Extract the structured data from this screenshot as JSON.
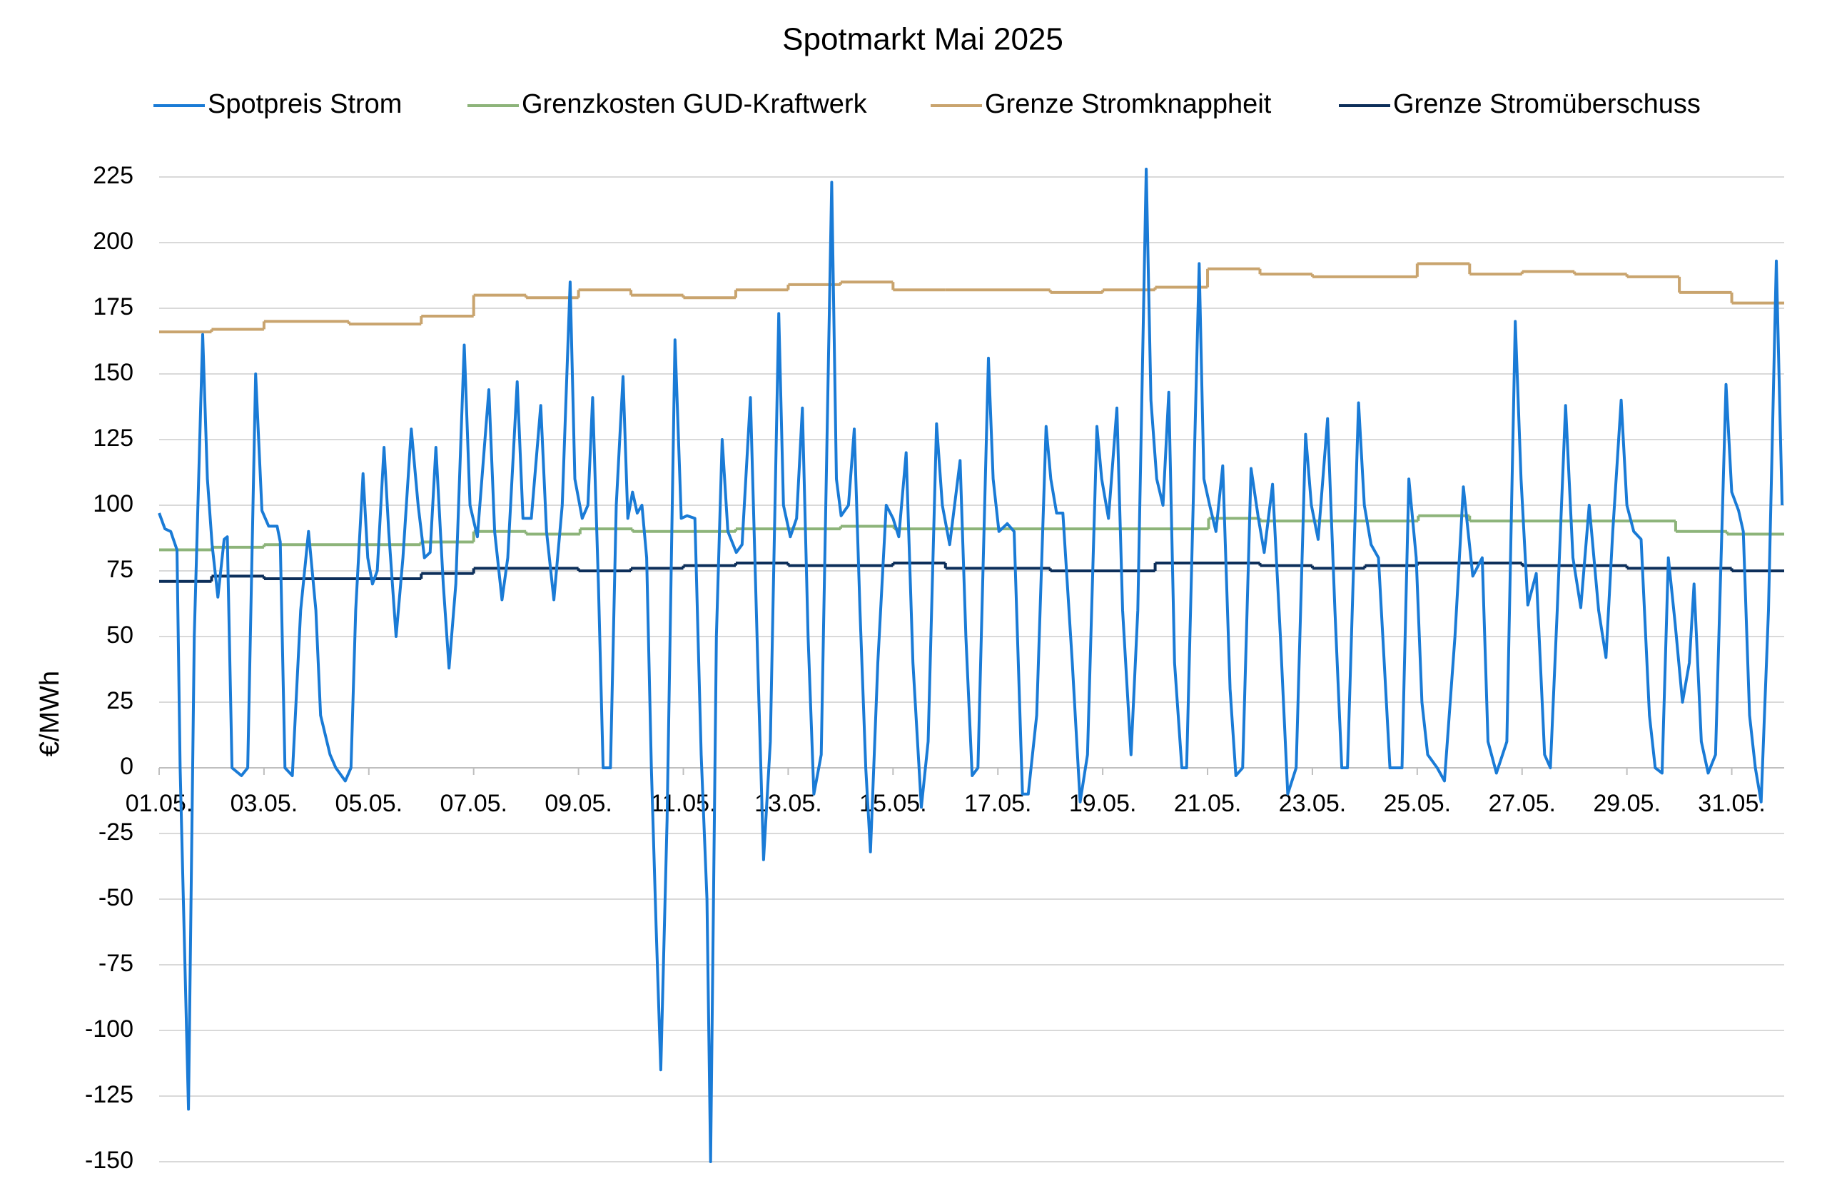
{
  "chart_data": {
    "type": "line",
    "title": "Spotmarkt Mai 2025",
    "y_label": "€/MWh",
    "xlim": [
      1,
      32
    ],
    "ylim": [
      -150,
      225
    ],
    "xticks": [
      {
        "value": 1,
        "label": "01.05."
      },
      {
        "value": 3,
        "label": "03.05."
      },
      {
        "value": 5,
        "label": "05.05."
      },
      {
        "value": 7,
        "label": "07.05."
      },
      {
        "value": 9,
        "label": "09.05."
      },
      {
        "value": 11,
        "label": "11.05."
      },
      {
        "value": 13,
        "label": "13.05."
      },
      {
        "value": 15,
        "label": "15.05."
      },
      {
        "value": 17,
        "label": "17.05."
      },
      {
        "value": 19,
        "label": "19.05."
      },
      {
        "value": 21,
        "label": "21.05."
      },
      {
        "value": 23,
        "label": "23.05."
      },
      {
        "value": 25,
        "label": "25.05."
      },
      {
        "value": 27,
        "label": "27.05."
      },
      {
        "value": 29,
        "label": "29.05."
      },
      {
        "value": 31,
        "label": "31.05."
      }
    ],
    "yticks": [
      225,
      200,
      175,
      150,
      125,
      100,
      75,
      50,
      25,
      0,
      -25,
      -50,
      -75,
      -100,
      -125,
      -150
    ],
    "grid": true,
    "series": [
      {
        "name": "Spotpreis Strom",
        "color": "#1a7bd6",
        "x": [
          1.0,
          1.11,
          1.22,
          1.34,
          1.4,
          1.56,
          1.67,
          1.83,
          1.92,
          2.01,
          2.12,
          2.24,
          2.3,
          2.39,
          2.57,
          2.69,
          2.84,
          2.96,
          3.09,
          3.25,
          3.31,
          3.4,
          3.54,
          3.7,
          3.85,
          3.99,
          4.08,
          4.26,
          4.37,
          4.55,
          4.66,
          4.75,
          4.89,
          4.98,
          5.07,
          5.16,
          5.29,
          5.38,
          5.52,
          5.65,
          5.81,
          5.94,
          6.06,
          6.17,
          6.28,
          6.42,
          6.53,
          6.66,
          6.82,
          6.93,
          7.07,
          7.29,
          7.4,
          7.54,
          7.65,
          7.83,
          7.94,
          8.1,
          8.28,
          8.39,
          8.53,
          8.69,
          8.84,
          8.93,
          9.07,
          9.18,
          9.27,
          9.38,
          9.47,
          9.61,
          9.72,
          9.85,
          9.94,
          10.03,
          10.12,
          10.21,
          10.3,
          10.39,
          10.48,
          10.57,
          10.69,
          10.84,
          10.96,
          11.07,
          11.22,
          11.34,
          11.45,
          11.52,
          11.63,
          11.74,
          11.85,
          12.01,
          12.12,
          12.28,
          12.42,
          12.53,
          12.66,
          12.82,
          12.91,
          13.04,
          13.16,
          13.27,
          13.38,
          13.49,
          13.63,
          13.83,
          13.92,
          14.01,
          14.15,
          14.26,
          14.37,
          14.48,
          14.57,
          14.71,
          14.87,
          15.0,
          15.11,
          15.25,
          15.38,
          15.54,
          15.67,
          15.83,
          15.94,
          16.08,
          16.28,
          16.39,
          16.51,
          16.62,
          16.82,
          16.91,
          17.02,
          17.18,
          17.31,
          17.47,
          17.58,
          17.74,
          17.92,
          18.01,
          18.12,
          18.24,
          18.42,
          18.57,
          18.71,
          18.89,
          18.98,
          19.11,
          19.27,
          19.38,
          19.54,
          19.67,
          19.83,
          19.92,
          20.03,
          20.15,
          20.26,
          20.37,
          20.51,
          20.6,
          20.84,
          20.93,
          21.04,
          21.16,
          21.29,
          21.43,
          21.54,
          21.67,
          21.83,
          21.97,
          22.08,
          22.24,
          22.39,
          22.53,
          22.69,
          22.87,
          22.98,
          23.11,
          23.29,
          23.43,
          23.56,
          23.67,
          23.88,
          23.99,
          24.12,
          24.26,
          24.37,
          24.48,
          24.71,
          24.84,
          24.98,
          25.09,
          25.2,
          25.38,
          25.52,
          25.72,
          25.88,
          26.06,
          26.24,
          26.35,
          26.51,
          26.71,
          26.87,
          26.98,
          27.11,
          27.27,
          27.43,
          27.54,
          27.67,
          27.83,
          27.97,
          28.12,
          28.28,
          28.46,
          28.6,
          28.73,
          28.89,
          29.0,
          29.13,
          29.27,
          29.43,
          29.54,
          29.67,
          29.79,
          29.92,
          30.06,
          30.19,
          30.28,
          30.42,
          30.55,
          30.69,
          30.89,
          31.0,
          31.13,
          31.22,
          31.34,
          31.45,
          31.56,
          31.7,
          31.85,
          31.96
        ],
        "values": [
          97,
          91,
          90,
          83,
          0,
          -130,
          50,
          165,
          110,
          85,
          65,
          87,
          88,
          0,
          -3,
          0,
          150,
          98,
          92,
          92,
          86,
          0,
          -3,
          60,
          90,
          60,
          20,
          5,
          0,
          -5,
          0,
          60,
          112,
          80,
          70,
          75,
          122,
          90,
          50,
          80,
          129,
          100,
          80,
          82,
          122,
          70,
          38,
          70,
          161,
          100,
          88,
          144,
          90,
          64,
          80,
          147,
          95,
          95,
          138,
          90,
          64,
          100,
          185,
          110,
          95,
          100,
          141,
          70,
          0,
          0,
          100,
          149,
          95,
          105,
          97,
          100,
          80,
          0,
          -60,
          -115,
          -20,
          163,
          95,
          96,
          95,
          5,
          -50,
          -150,
          50,
          125,
          90,
          82,
          85,
          141,
          40,
          -35,
          10,
          173,
          100,
          88,
          95,
          137,
          50,
          -10,
          5,
          223,
          110,
          96,
          100,
          129,
          60,
          0,
          -32,
          40,
          100,
          95,
          88,
          120,
          40,
          -15,
          10,
          131,
          100,
          85,
          117,
          50,
          -3,
          0,
          156,
          110,
          90,
          93,
          90,
          -10,
          -10,
          20,
          130,
          110,
          97,
          97,
          40,
          -13,
          5,
          130,
          110,
          95,
          137,
          60,
          5,
          60,
          228,
          140,
          110,
          100,
          143,
          40,
          0,
          0,
          192,
          110,
          100,
          90,
          115,
          30,
          -3,
          0,
          114,
          95,
          82,
          108,
          50,
          -10,
          0,
          127,
          100,
          87,
          133,
          60,
          0,
          0,
          139,
          100,
          85,
          80,
          40,
          0,
          0,
          110,
          80,
          25,
          5,
          0,
          -5,
          50,
          107,
          73,
          80,
          10,
          -2,
          10,
          170,
          110,
          62,
          74,
          5,
          0,
          60,
          138,
          80,
          61,
          100,
          60,
          42,
          90,
          140,
          100,
          90,
          87,
          20,
          0,
          -2,
          80,
          55,
          25,
          40,
          70,
          10,
          -2,
          5,
          146,
          105,
          98,
          90,
          20,
          0,
          -13,
          60,
          193,
          100
        ]
      },
      {
        "name": "Grenzkosten GUD-Kraftwerk",
        "color": "#8db47a",
        "step": true,
        "x": [
          1,
          2.01,
          3,
          5.99,
          7,
          8,
          9.03,
          10.03,
          12,
          14,
          15.02,
          21.02,
          22,
          25.02,
          26,
          29.93,
          30.91,
          32
        ],
        "values": [
          83,
          84,
          85,
          86,
          90,
          89,
          91,
          90,
          91,
          92,
          91,
          95,
          94,
          96,
          94,
          90,
          89,
          89
        ]
      },
      {
        "name": "Grenze Stromknappheit",
        "color": "#c9a46e",
        "step": true,
        "x": [
          1,
          2,
          3,
          4.62,
          6,
          7,
          8,
          9,
          10,
          11,
          12,
          13,
          14,
          15,
          16,
          18,
          19,
          20,
          21,
          22,
          23,
          25,
          26,
          27,
          28,
          29,
          30,
          31,
          32
        ],
        "values": [
          166,
          167,
          170,
          169,
          172,
          180,
          179,
          182,
          180,
          179,
          182,
          184,
          185,
          182,
          182,
          181,
          182,
          183,
          190,
          188,
          187,
          192,
          188,
          189,
          188,
          187,
          181,
          177,
          177
        ]
      },
      {
        "name": "Grenze Stromüberschuss",
        "color": "#0d2f5a",
        "step": true,
        "x": [
          1,
          2,
          3,
          6,
          7,
          9,
          10,
          11,
          12,
          13,
          15,
          16,
          18,
          20,
          22,
          23,
          24,
          25,
          27,
          29,
          31,
          32
        ],
        "values": [
          71,
          73,
          72,
          74,
          76,
          75,
          76,
          77,
          78,
          77,
          78,
          76,
          75,
          78,
          77,
          76,
          77,
          78,
          77,
          76,
          75,
          75
        ]
      }
    ]
  }
}
